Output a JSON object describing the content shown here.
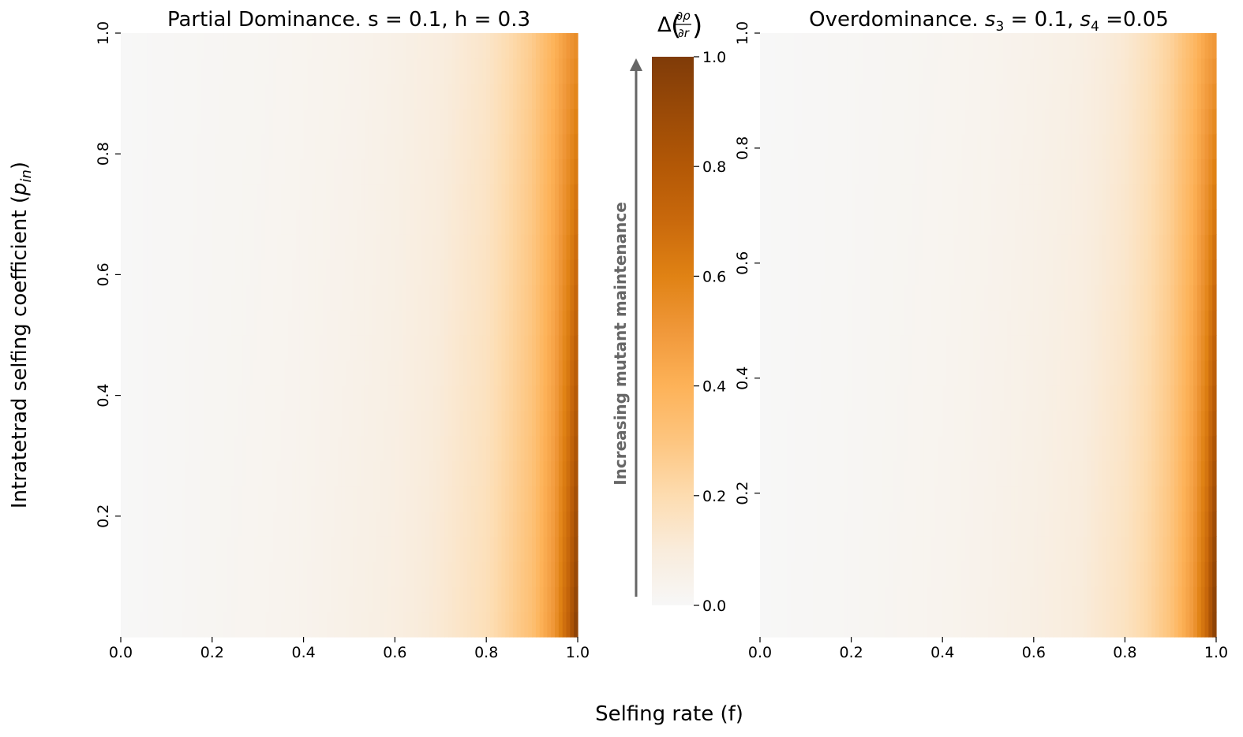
{
  "figure": {
    "xlabel": "Selfing rate (f)",
    "ylabel_main": "Intratetrad selfing coefficient (",
    "ylabel_var": "p",
    "ylabel_sub": "in",
    "ylabel_close": ")"
  },
  "colorbar": {
    "title_prefix": "Δ",
    "title_num": "∂ρ",
    "title_den": "∂r",
    "ticks": [
      "0.0",
      "0.2",
      "0.4",
      "0.6",
      "0.8",
      "1.0"
    ],
    "tick_values": [
      0.0,
      0.2,
      0.4,
      0.6,
      0.8,
      1.0
    ],
    "range": [
      0,
      1
    ],
    "annotation": "Increasing mutant maintenance",
    "annotation_color": "#666666",
    "colormap_stops": [
      {
        "v": 0.0,
        "color": "#f7f7f7"
      },
      {
        "v": 0.1,
        "color": "#f9ecdc"
      },
      {
        "v": 0.2,
        "color": "#fddcb0"
      },
      {
        "v": 0.3,
        "color": "#fdc57f"
      },
      {
        "v": 0.4,
        "color": "#fdb258"
      },
      {
        "v": 0.5,
        "color": "#f0983a"
      },
      {
        "v": 0.6,
        "color": "#e08214"
      },
      {
        "v": 0.7,
        "color": "#c9690c"
      },
      {
        "v": 0.8,
        "color": "#b35806"
      },
      {
        "v": 0.9,
        "color": "#9a4a07"
      },
      {
        "v": 1.0,
        "color": "#7f3b08"
      }
    ]
  },
  "chart_data": [
    {
      "type": "heatmap",
      "title": "Partial Dominance. s = 0.1, h = 0.3",
      "x_tick_labels": [
        "0.0",
        "0.2",
        "0.4",
        "0.6",
        "0.8",
        "1.0"
      ],
      "x_ticks": [
        0.0,
        0.2,
        0.4,
        0.6,
        0.8,
        1.0
      ],
      "y_tick_labels": [
        "0.2",
        "0.4",
        "0.6",
        "0.8",
        "1.0"
      ],
      "y_ticks": [
        0.2,
        0.4,
        0.6,
        0.8,
        1.0
      ],
      "xlim": [
        0,
        1
      ],
      "ylim": [
        0,
        1
      ],
      "colorbar_range": [
        0,
        1
      ],
      "x": [
        0.0,
        0.1,
        0.2,
        0.3,
        0.4,
        0.5,
        0.6,
        0.7,
        0.8,
        0.85,
        0.9,
        0.95,
        0.98,
        1.0
      ],
      "value_at_y0": [
        0.0,
        0.01,
        0.02,
        0.03,
        0.04,
        0.06,
        0.08,
        0.12,
        0.18,
        0.25,
        0.33,
        0.52,
        0.75,
        1.0
      ],
      "value_at_y1": [
        0.0,
        0.008,
        0.015,
        0.02,
        0.03,
        0.04,
        0.06,
        0.09,
        0.14,
        0.2,
        0.27,
        0.4,
        0.5,
        0.55
      ]
    },
    {
      "type": "heatmap",
      "title_prefix": "Overdominance. ",
      "title_parts": [
        {
          "var": "s",
          "sub": "3",
          "text": " = 0.1, "
        },
        {
          "var": "s",
          "sub": "4",
          "text": " =0.05"
        }
      ],
      "x_tick_labels": [
        "0.0",
        "0.2",
        "0.4",
        "0.6",
        "0.8",
        "1.0"
      ],
      "x_ticks": [
        0.0,
        0.2,
        0.4,
        0.6,
        0.8,
        1.0
      ],
      "y_tick_labels": [
        "0.2",
        "0.4",
        "0.6",
        "0.8",
        "1.0"
      ],
      "y_ticks": [
        0.2,
        0.4,
        0.6,
        0.8,
        1.0
      ],
      "xlim": [
        0,
        1
      ],
      "ylim": [
        -0.05,
        1
      ],
      "colorbar_range": [
        0,
        1
      ],
      "x": [
        0.0,
        0.1,
        0.2,
        0.3,
        0.4,
        0.5,
        0.6,
        0.7,
        0.8,
        0.85,
        0.9,
        0.95,
        0.98,
        1.0
      ],
      "value_at_y0": [
        0.0,
        0.008,
        0.015,
        0.025,
        0.035,
        0.05,
        0.07,
        0.1,
        0.16,
        0.22,
        0.31,
        0.5,
        0.72,
        1.0
      ],
      "value_at_y1": [
        0.0,
        0.006,
        0.012,
        0.018,
        0.025,
        0.035,
        0.05,
        0.07,
        0.12,
        0.17,
        0.24,
        0.36,
        0.46,
        0.5
      ]
    }
  ]
}
